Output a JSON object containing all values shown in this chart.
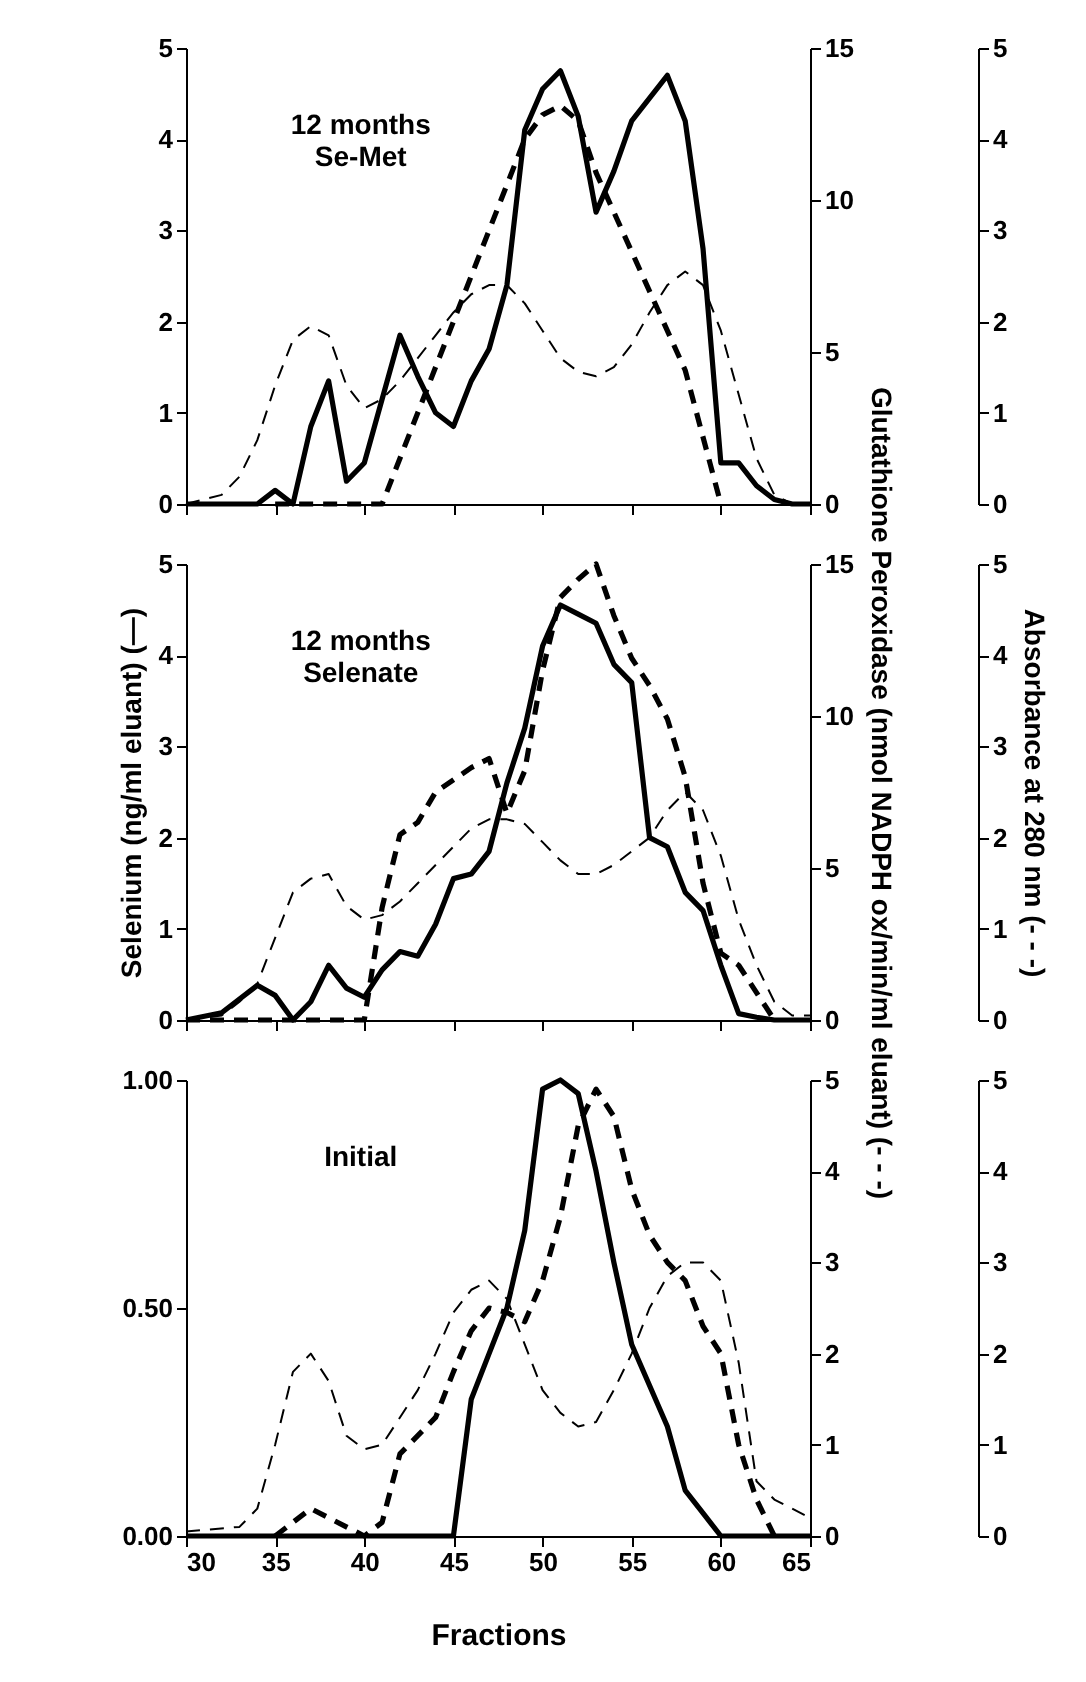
{
  "chart_data": [
    {
      "type": "line",
      "annotations": [
        "12 months\nSe-Met"
      ],
      "tick_labels": "y",
      "xlim": [
        30,
        65
      ],
      "xticks": [
        30,
        35,
        40,
        45,
        50,
        55,
        60,
        65
      ],
      "ylim": [
        0,
        5
      ],
      "yticks": [
        0,
        1,
        2,
        3,
        4,
        5
      ],
      "y2lim": [
        0,
        15
      ],
      "y2ticks": [
        0,
        5,
        10,
        15
      ],
      "y3lim": [
        0,
        5
      ],
      "y3ticks": [
        0,
        1,
        2,
        3,
        4,
        5
      ],
      "series": [
        {
          "color": "#000000",
          "line_style": "solid",
          "axis": "y",
          "x": [
            30,
            34,
            35,
            36,
            37,
            38,
            39,
            40,
            42,
            43,
            44,
            45,
            46,
            47,
            48,
            49,
            50,
            51,
            52,
            53,
            54,
            55,
            56,
            57,
            58,
            59,
            60,
            61,
            62,
            63,
            64,
            65
          ],
          "values": [
            0,
            0,
            0.15,
            0,
            0.85,
            1.35,
            0.25,
            0.45,
            1.85,
            1.4,
            1.0,
            0.85,
            1.35,
            1.7,
            2.4,
            4.1,
            4.55,
            4.75,
            4.25,
            3.2,
            3.65,
            4.2,
            4.45,
            4.7,
            4.2,
            2.8,
            0.45,
            0.45,
            0.2,
            0.05,
            0,
            0
          ]
        },
        {
          "color": "#000000",
          "line_style": "dashed",
          "axis": "y2",
          "x": [
            35,
            41,
            49,
            50,
            51,
            52,
            53,
            58,
            60
          ],
          "values": [
            0,
            0,
            12.0,
            12.8,
            13.1,
            12.6,
            10.9,
            4.4,
            0
          ]
        },
        {
          "color": "#000000",
          "line_style": "dashed",
          "axis": "y3",
          "x": [
            30,
            32,
            33,
            34,
            35,
            36,
            37,
            38,
            39,
            40,
            41,
            42,
            43,
            44,
            45,
            46,
            47,
            48,
            49,
            50,
            51,
            52,
            53,
            54,
            55,
            56,
            57,
            58,
            59,
            60,
            61,
            62,
            63,
            64
          ],
          "values": [
            0,
            0.1,
            0.3,
            0.7,
            1.3,
            1.8,
            1.95,
            1.85,
            1.3,
            1.05,
            1.15,
            1.35,
            1.6,
            1.85,
            2.1,
            2.3,
            2.4,
            2.4,
            2.2,
            1.9,
            1.6,
            1.45,
            1.4,
            1.5,
            1.75,
            2.1,
            2.4,
            2.55,
            2.4,
            1.9,
            1.2,
            0.5,
            0.1,
            0
          ]
        }
      ]
    },
    {
      "type": "line",
      "annotations": [
        "12 months\nSelenate"
      ],
      "ylabel": "Selenium (ng/ml eluant) (—)",
      "y2label": "Glutathione Peroxidase (nmol NADPH ox/min/ml eluant) (- - -)",
      "y3label": "Absorbance at 280 nm (- - -)",
      "tick_labels": "y",
      "xlim": [
        30,
        65
      ],
      "xticks": [
        30,
        35,
        40,
        45,
        50,
        55,
        60,
        65
      ],
      "ylim": [
        0,
        5
      ],
      "yticks": [
        0,
        1,
        2,
        3,
        4,
        5
      ],
      "y2lim": [
        0,
        15
      ],
      "y2ticks": [
        0,
        5,
        10,
        15
      ],
      "y3lim": [
        0,
        5
      ],
      "y3ticks": [
        0,
        1,
        2,
        3,
        4,
        5
      ],
      "series": [
        {
          "color": "#000000",
          "line_style": "solid",
          "axis": "y",
          "x": [
            30,
            32,
            34,
            35,
            36,
            37,
            38,
            39,
            40,
            41,
            42,
            43,
            44,
            45,
            46,
            47,
            48,
            49,
            50,
            51,
            52,
            53,
            54,
            55,
            56,
            57,
            58,
            59,
            60,
            61,
            62,
            63,
            65
          ],
          "values": [
            0,
            0.08,
            0.38,
            0.27,
            0,
            0.2,
            0.6,
            0.35,
            0.25,
            0.55,
            0.75,
            0.7,
            1.05,
            1.55,
            1.6,
            1.85,
            2.6,
            3.2,
            4.1,
            4.55,
            4.45,
            4.35,
            3.9,
            3.7,
            2.0,
            1.9,
            1.4,
            1.2,
            0.6,
            0.07,
            0.03,
            0,
            0
          ]
        },
        {
          "color": "#000000",
          "line_style": "dashed",
          "axis": "y2",
          "x": [
            30,
            40,
            41,
            42,
            43,
            44,
            45,
            46,
            47,
            48,
            49,
            50,
            51,
            52,
            53,
            54,
            55,
            56,
            57,
            58,
            59,
            60,
            61,
            62,
            63
          ],
          "values": [
            0,
            0,
            3.7,
            6.1,
            6.5,
            7.5,
            7.9,
            8.3,
            8.6,
            6.8,
            8.2,
            11.5,
            13.9,
            14.5,
            15,
            13.3,
            11.9,
            11.0,
            9.9,
            8.0,
            4.5,
            2.2,
            1.8,
            0.9,
            0
          ]
        },
        {
          "color": "#000000",
          "line_style": "dashed",
          "axis": "y3",
          "x": [
            30,
            32,
            33,
            34,
            35,
            36,
            37,
            38,
            39,
            40,
            41,
            42,
            43,
            44,
            45,
            46,
            47,
            48,
            49,
            50,
            51,
            52,
            53,
            54,
            55,
            56,
            57,
            58,
            59,
            60,
            61,
            62,
            63,
            64,
            65
          ],
          "values": [
            0,
            0.05,
            0.2,
            0.4,
            0.9,
            1.4,
            1.55,
            1.6,
            1.25,
            1.1,
            1.15,
            1.3,
            1.5,
            1.7,
            1.9,
            2.1,
            2.2,
            2.2,
            2.15,
            1.95,
            1.75,
            1.6,
            1.6,
            1.7,
            1.85,
            2.0,
            2.3,
            2.5,
            2.3,
            1.8,
            1.1,
            0.6,
            0.2,
            0.05,
            0.05
          ]
        }
      ]
    },
    {
      "type": "line",
      "annotations": [
        "Initial"
      ],
      "xlabel": "Fractions",
      "xlim": [
        30,
        65
      ],
      "xticks": [
        30,
        35,
        40,
        45,
        50,
        55,
        60,
        65
      ],
      "ylim": [
        0,
        1
      ],
      "yticks": [
        {
          "value": 0,
          "label": "0.00"
        },
        {
          "value": 0.5,
          "label": "0.50"
        },
        {
          "value": 1,
          "label": "1.00"
        }
      ],
      "y2lim": [
        0,
        5
      ],
      "y2ticks": [
        0,
        1,
        2,
        3,
        4,
        5
      ],
      "y3lim": [
        0,
        5
      ],
      "y3ticks": [
        0,
        1,
        2,
        3,
        4,
        5
      ],
      "series": [
        {
          "color": "#000000",
          "line_style": "solid",
          "axis": "y",
          "x": [
            30,
            45,
            46,
            47,
            48,
            49,
            50,
            51,
            52,
            53,
            54,
            55,
            56,
            57,
            58,
            59,
            60,
            65
          ],
          "values": [
            0,
            0,
            0.3,
            0.4,
            0.5,
            0.67,
            0.98,
            1.0,
            0.97,
            0.8,
            0.6,
            0.42,
            0.33,
            0.24,
            0.1,
            0.05,
            0,
            0
          ]
        },
        {
          "color": "#000000",
          "line_style": "dashed",
          "axis": "y2",
          "x": [
            35,
            37,
            40,
            41,
            42,
            43,
            44,
            45,
            46,
            47,
            48,
            49,
            50,
            51,
            52,
            53,
            54,
            55,
            56,
            57,
            58,
            59,
            60,
            61,
            62,
            63
          ],
          "values": [
            0,
            0.3,
            0,
            0.15,
            0.9,
            1.1,
            1.3,
            1.8,
            2.25,
            2.5,
            2.45,
            2.35,
            2.8,
            3.5,
            4.5,
            4.9,
            4.6,
            3.8,
            3.3,
            3.0,
            2.8,
            2.3,
            2.0,
            1.0,
            0.4,
            0
          ]
        },
        {
          "color": "#000000",
          "line_style": "dashed",
          "axis": "y3",
          "x": [
            30,
            33,
            34,
            35,
            36,
            37,
            38,
            39,
            40,
            41,
            42,
            43,
            44,
            45,
            46,
            47,
            48,
            49,
            50,
            51,
            52,
            53,
            54,
            55,
            56,
            57,
            58,
            59,
            60,
            61,
            62,
            63,
            64,
            65
          ],
          "values": [
            0.05,
            0.1,
            0.3,
            1.0,
            1.8,
            2.0,
            1.7,
            1.1,
            0.95,
            1.0,
            1.3,
            1.6,
            2.0,
            2.45,
            2.7,
            2.8,
            2.6,
            2.1,
            1.6,
            1.35,
            1.2,
            1.25,
            1.6,
            2.0,
            2.5,
            2.85,
            3.0,
            3.0,
            2.8,
            1.9,
            0.6,
            0.4,
            0.3,
            0.2
          ]
        }
      ]
    }
  ]
}
